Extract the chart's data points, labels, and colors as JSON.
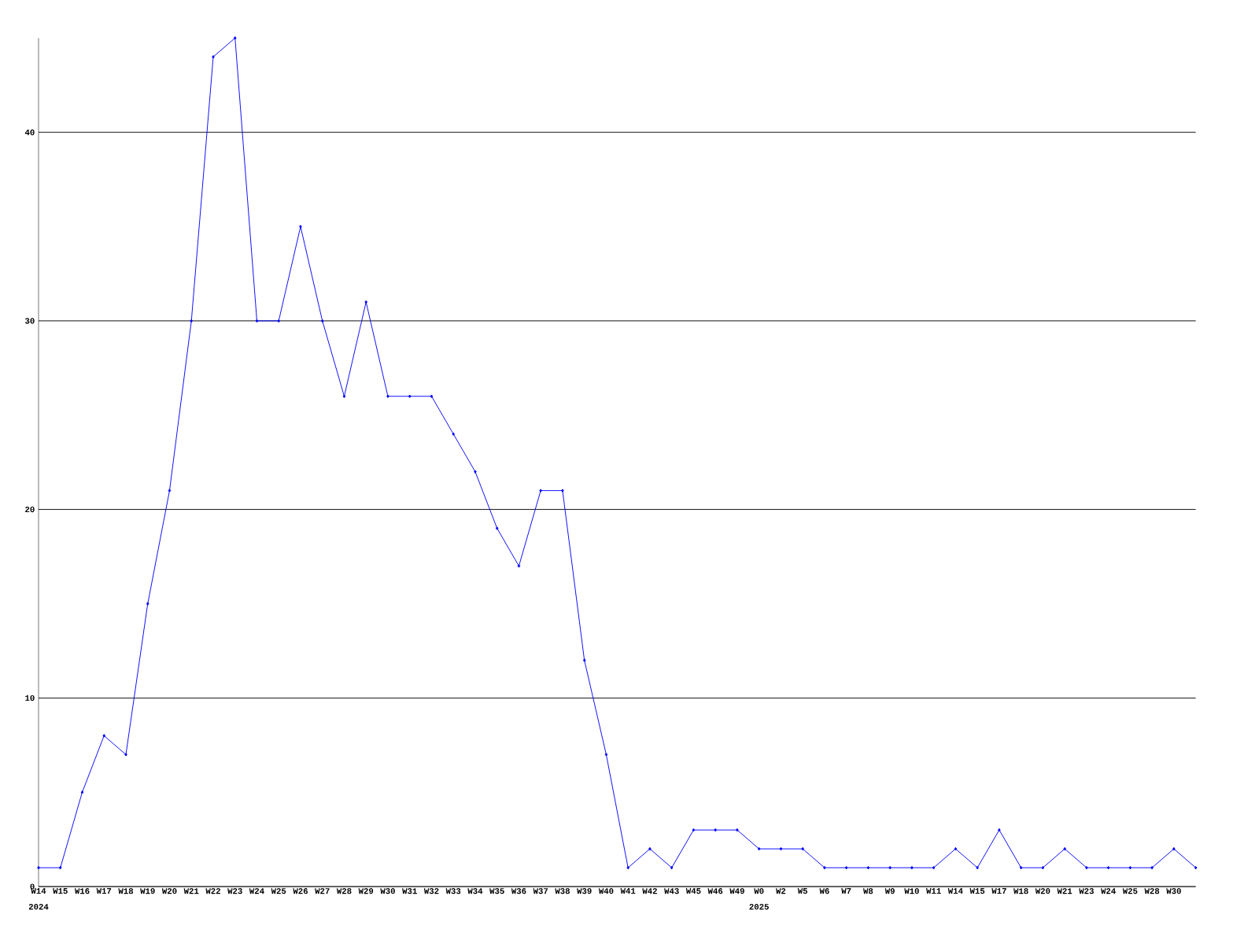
{
  "chart_data": {
    "type": "line",
    "categories": [
      "W14",
      "W15",
      "W16",
      "W17",
      "W18",
      "W19",
      "W20",
      "W21",
      "W22",
      "W23",
      "W24",
      "W25",
      "W26",
      "W27",
      "W28",
      "W29",
      "W30",
      "W31",
      "W32",
      "W33",
      "W34",
      "W35",
      "W36",
      "W37",
      "W38",
      "W39",
      "W40",
      "W41",
      "W42",
      "W43",
      "W45",
      "W46",
      "W49",
      "W0",
      "W2",
      "W5",
      "W6",
      "W7",
      "W8",
      "W9",
      "W10",
      "W11",
      "W14",
      "W15",
      "W17",
      "W18",
      "W20",
      "W21",
      "W23",
      "W24",
      "W25",
      "W28",
      "W30",
      null
    ],
    "values": [
      1,
      1,
      5,
      8,
      7,
      15,
      21,
      30,
      44,
      45,
      30,
      30,
      35,
      30,
      26,
      31,
      26,
      26,
      26,
      24,
      22,
      19,
      17,
      21,
      21,
      12,
      7,
      1,
      2,
      1,
      3,
      3,
      3,
      2,
      2,
      2,
      1,
      1,
      1,
      1,
      1,
      1,
      2,
      1,
      3,
      1,
      1,
      2,
      1,
      1,
      1,
      1,
      2,
      1
    ],
    "color": "#0000ff",
    "ylim": [
      0,
      45
    ],
    "yticks": [
      0,
      10,
      20,
      30,
      40
    ],
    "grid": "y",
    "marker": "diamond",
    "annotations": [
      "2024",
      "2025"
    ]
  }
}
